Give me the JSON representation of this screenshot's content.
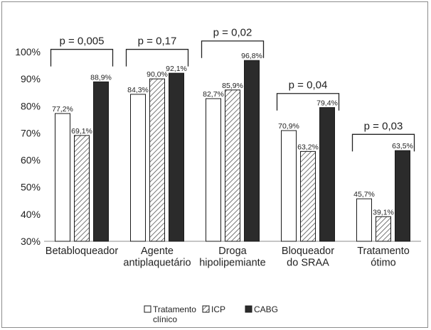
{
  "chart_data": {
    "type": "bar",
    "categories": [
      [
        "Betabloqueador"
      ],
      [
        "Agente",
        "antiplaquetário"
      ],
      [
        "Droga",
        "hipolipemiante"
      ],
      [
        "Bloqueador",
        "do SRAA"
      ],
      [
        "Tratamento",
        "ótimo"
      ]
    ],
    "series": [
      {
        "name": "Tratamento clínico",
        "name_lines": [
          "Tratamento",
          "clínico"
        ],
        "fill": "#ffffff",
        "pattern": "none",
        "values": [
          77.2,
          84.3,
          82.7,
          70.9,
          45.7
        ],
        "labels": [
          "77,2%",
          "84,3%",
          "82,7%",
          "70,9%",
          "45,7%"
        ]
      },
      {
        "name": "ICP",
        "name_lines": [
          "ICP"
        ],
        "fill": "#ffffff",
        "pattern": "hatch",
        "values": [
          69.1,
          90.0,
          85.9,
          63.2,
          39.1
        ],
        "labels": [
          "69,1%",
          "90,0%",
          "85,9%",
          "63,2%",
          "39,1%"
        ]
      },
      {
        "name": "CABG",
        "name_lines": [
          "CABG"
        ],
        "fill": "#2b2b2b",
        "pattern": "none",
        "values": [
          88.9,
          92.1,
          96.8,
          79.4,
          63.5
        ],
        "labels": [
          "88,9%",
          "92,1%",
          "96,8%",
          "79,4%",
          "63,5%"
        ]
      }
    ],
    "y_ticks": [
      "30%",
      "40%",
      "50%",
      "60%",
      "70%",
      "80%",
      "90%",
      "100%"
    ],
    "ylim": [
      30,
      100
    ],
    "brackets": [
      {
        "label": "p = 0,005",
        "level": 100.9
      },
      {
        "label": "p = 0,17",
        "level": 100.9
      },
      {
        "label": "p = 0,02",
        "level": 104.0
      },
      {
        "label": "p = 0,04",
        "level": 84.6
      },
      {
        "label": "p = 0,03",
        "level": 69.5
      }
    ],
    "legend_position": "bottom-center",
    "grid": false
  }
}
